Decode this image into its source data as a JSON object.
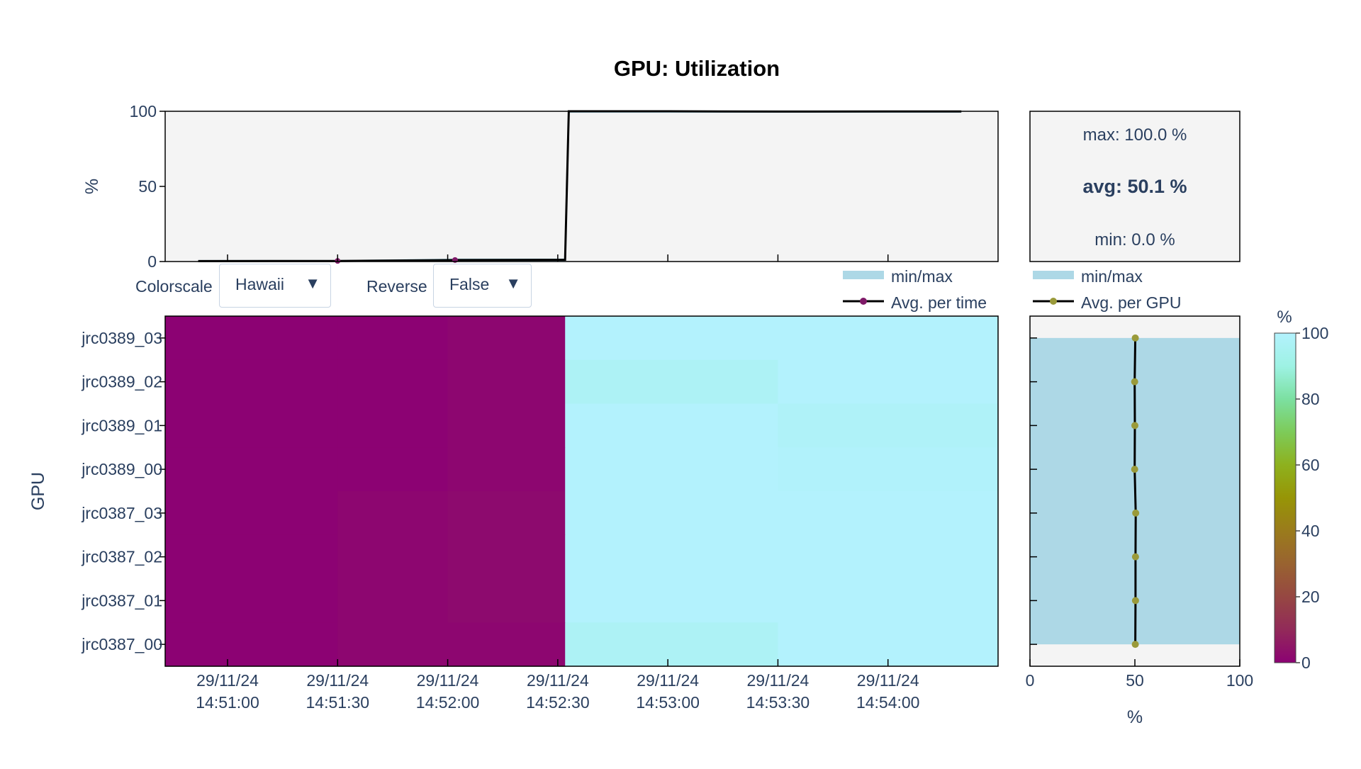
{
  "title": "GPU: Utilization",
  "controls": {
    "colorscale_label": "Colorscale",
    "colorscale_value": "Hawaii",
    "reverse_label": "Reverse",
    "reverse_value": "False",
    "arrow_glyph": "▼"
  },
  "chart_data": [
    {
      "id": "avg-per-time",
      "type": "line",
      "ylabel": "%",
      "ylim": [
        0,
        100
      ],
      "yticks": [
        0,
        50,
        100
      ],
      "x": [
        "14:50:52",
        "14:51:30",
        "14:52:02",
        "14:52:32",
        "14:52:33",
        "14:53:00",
        "14:53:30",
        "14:54:00",
        "14:54:20"
      ],
      "series": [
        {
          "name": "Avg. per time",
          "values": [
            0.3,
            0.4,
            1.0,
            1.2,
            100,
            100,
            99.8,
            99.9,
            99.9
          ],
          "color": "#000000",
          "marker_color": "#7f1a68"
        },
        {
          "name": "min/max",
          "min": [
            0,
            0,
            0,
            0,
            99,
            99,
            99,
            99,
            99
          ],
          "max": [
            1,
            1,
            2,
            2,
            100,
            100,
            100,
            100,
            100
          ],
          "color": "#add8e6"
        }
      ],
      "grid": false
    },
    {
      "id": "gpu-heatmap",
      "type": "heatmap",
      "ylabel": "GPU",
      "x_start": "14:50:43",
      "x_end": "14:54:30",
      "xticks": [
        {
          "value": "14:51:00",
          "label_date": "29/11/24",
          "label_time": "14:51:00"
        },
        {
          "value": "14:51:30",
          "label_date": "29/11/24",
          "label_time": "14:51:30"
        },
        {
          "value": "14:52:00",
          "label_date": "29/11/24",
          "label_time": "14:52:00"
        },
        {
          "value": "14:52:30",
          "label_date": "29/11/24",
          "label_time": "14:52:30"
        },
        {
          "value": "14:53:00",
          "label_date": "29/11/24",
          "label_time": "14:53:00"
        },
        {
          "value": "14:53:30",
          "label_date": "29/11/24",
          "label_time": "14:53:30"
        },
        {
          "value": "14:54:00",
          "label_date": "29/11/24",
          "label_time": "14:54:00"
        }
      ],
      "time_bins": [
        "14:50:43",
        "14:51:30",
        "14:52:00",
        "14:52:32",
        "14:53:30",
        "14:54:30"
      ],
      "gpus": [
        "jrc0389_03",
        "jrc0389_02",
        "jrc0389_01",
        "jrc0389_00",
        "jrc0387_03",
        "jrc0387_02",
        "jrc0387_01",
        "jrc0387_00"
      ],
      "values": [
        [
          0,
          0,
          1,
          100,
          100
        ],
        [
          0,
          0,
          1,
          97,
          100
        ],
        [
          0,
          0,
          1,
          100,
          98
        ],
        [
          0,
          0,
          1,
          100,
          99
        ],
        [
          0,
          1,
          2,
          100,
          100
        ],
        [
          0,
          1,
          2,
          100,
          100
        ],
        [
          0,
          1,
          2,
          100,
          100
        ],
        [
          0,
          1,
          1,
          97,
          100
        ]
      ],
      "zlim": [
        0,
        100
      ],
      "colorscale": "Hawaii",
      "colorscale_stops": [
        "#8c0273",
        "#922a59",
        "#964742",
        "#996330",
        "#9a7b1c",
        "#979506",
        "#8eb11e",
        "#7dcb59",
        "#7ce0a1",
        "#9ef2e4",
        "#b3f2fd"
      ],
      "colorbar": {
        "title": "%",
        "ticks": [
          0,
          20,
          40,
          60,
          80,
          100
        ]
      },
      "legend": [
        {
          "name": "min/max",
          "color": "#add8e6"
        },
        {
          "name": "Avg. per time",
          "color": "#000000",
          "marker_color": "#7f1a68"
        }
      ]
    },
    {
      "id": "avg-per-gpu",
      "type": "line",
      "xlabel": "%",
      "xlim": [
        0,
        100
      ],
      "xticks": [
        0,
        50,
        100
      ],
      "categories": [
        "jrc0389_03",
        "jrc0389_02",
        "jrc0389_01",
        "jrc0389_00",
        "jrc0387_03",
        "jrc0387_02",
        "jrc0387_01",
        "jrc0387_00"
      ],
      "series": [
        {
          "name": "Avg. per GPU",
          "values": [
            50.2,
            49.9,
            50.0,
            49.9,
            50.4,
            50.3,
            50.3,
            50.2
          ],
          "color": "#000000",
          "marker_color": "#9a9a3a"
        },
        {
          "name": "min/max",
          "min": [
            0,
            0,
            0,
            0,
            0,
            0,
            0,
            0
          ],
          "max": [
            100,
            100,
            100,
            100,
            100,
            100,
            100,
            100
          ],
          "color": "#add8e6"
        }
      ],
      "legend": [
        {
          "name": "min/max",
          "color": "#add8e6"
        },
        {
          "name": "Avg. per GPU",
          "color": "#000000",
          "marker_color": "#9a9a3a"
        }
      ]
    },
    {
      "id": "stats",
      "type": "table",
      "max_text": "max: 100.0 %",
      "avg_text": "avg: 50.1 %",
      "min_text": "min: 0.0 %"
    }
  ]
}
